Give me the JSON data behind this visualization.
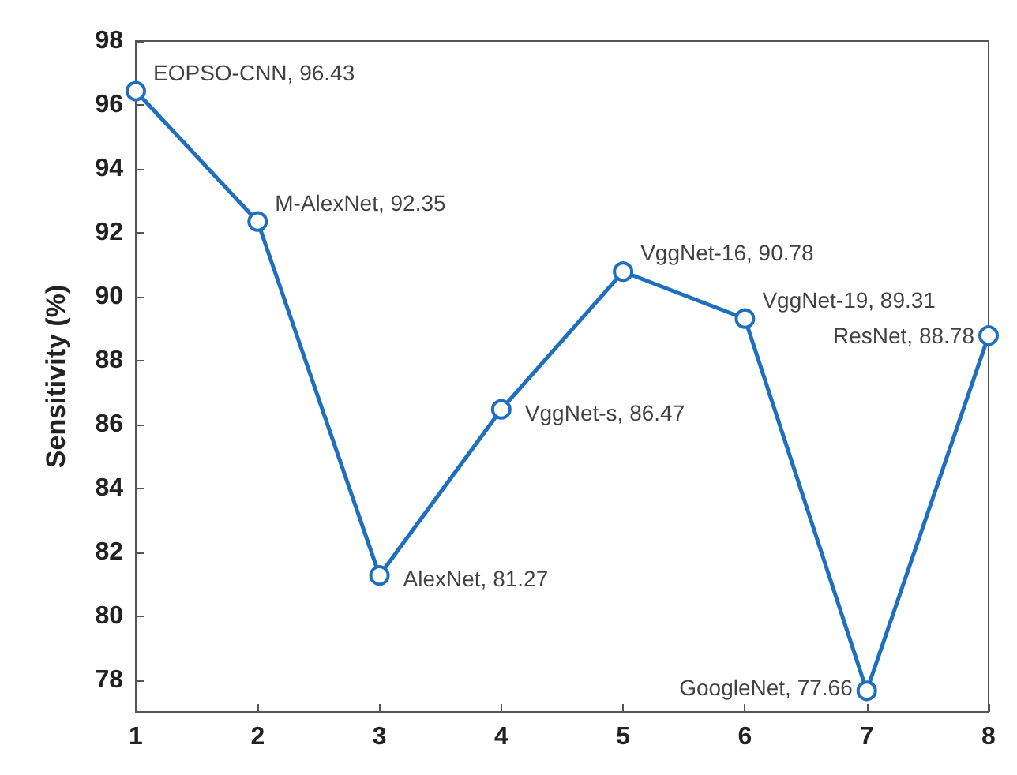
{
  "chart_data": {
    "type": "line",
    "ylabel": "Sensitivity (%)",
    "x": [
      1,
      2,
      3,
      4,
      5,
      6,
      7,
      8
    ],
    "series": [
      {
        "color": "#1f6fbf",
        "values": [
          96.43,
          92.35,
          81.27,
          86.47,
          90.78,
          89.31,
          77.66,
          88.78
        ]
      }
    ],
    "xlim": [
      1,
      8
    ],
    "xticks": [
      1,
      2,
      3,
      4,
      5,
      6,
      7,
      8
    ],
    "ylim": [
      77,
      98
    ],
    "yticks": [
      78,
      80,
      82,
      84,
      86,
      88,
      90,
      92,
      94,
      96,
      98
    ],
    "grid": false,
    "marker": "circle",
    "line_style": "solid",
    "annotations": [
      {
        "text": "EOPSO-CNN, 96.43",
        "x": 1,
        "y": 96.43
      },
      {
        "text": "M-AlexNet, 92.35",
        "x": 2,
        "y": 92.35
      },
      {
        "text": "AlexNet, 81.27",
        "x": 3,
        "y": 81.27
      },
      {
        "text": "VggNet-s, 86.47",
        "x": 4,
        "y": 86.47
      },
      {
        "text": "VggNet-16, 90.78",
        "x": 5,
        "y": 90.78
      },
      {
        "text": "VggNet-19, 89.31",
        "x": 6,
        "y": 89.31
      },
      {
        "text": "GoogleNet, 77.66",
        "x": 7,
        "y": 77.66
      },
      {
        "text": "ResNet, 88.78",
        "x": 8,
        "y": 88.78
      }
    ]
  }
}
